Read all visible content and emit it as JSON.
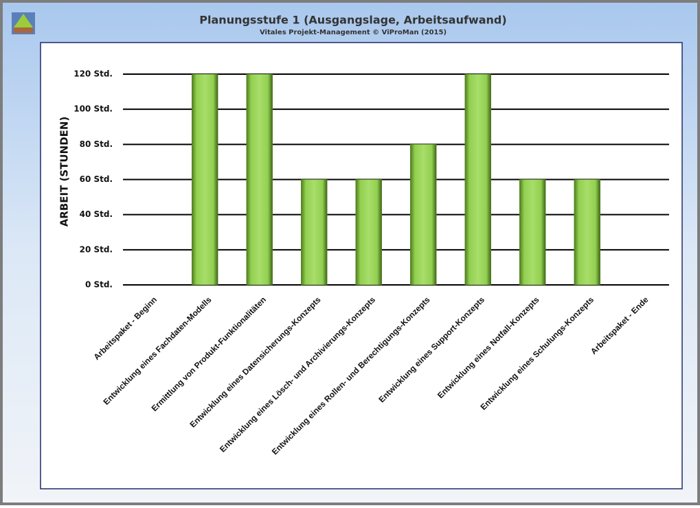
{
  "chart_data": {
    "type": "bar",
    "title": "Planungsstufe 1 (Ausgangslage, Arbeitsaufwand)",
    "subtitle": "Vitales Projekt-Management © ViProMan (2015)",
    "y_label": "ARBEIT (STUNDEN)",
    "categories": [
      "Arbeitspaket - Beginn",
      "Entwicklung eines Fachdaten-Modells",
      "Ermittlung von Produkt-Funktionalitäten",
      "Entwicklung eines Datensicherungs-Konzepts",
      "Entwicklung eines Lösch- und Archivierungs-Konzepts",
      "Entwicklung eines Rollen- und Berechtigungs-Konzepts",
      "Entwicklung eines Support-Konzepts",
      "Entwicklung eines Notfall-Konzepts",
      "Entwicklung eines Schulungs-Konzepts",
      "Arbeitspaket - Ende"
    ],
    "values": [
      0,
      120,
      120,
      60,
      60,
      80,
      120,
      60,
      60,
      0
    ],
    "color": "#92d050",
    "ylim": [
      0,
      120
    ],
    "yticks": [
      {
        "value": 0,
        "label": "0 Std."
      },
      {
        "value": 20,
        "label": "20 Std."
      },
      {
        "value": 40,
        "label": "40 Std."
      },
      {
        "value": 60,
        "label": "60 Std."
      },
      {
        "value": 80,
        "label": "80 Std."
      },
      {
        "value": 100,
        "label": "100 Std."
      },
      {
        "value": 120,
        "label": "120 Std."
      }
    ],
    "grid": true
  }
}
